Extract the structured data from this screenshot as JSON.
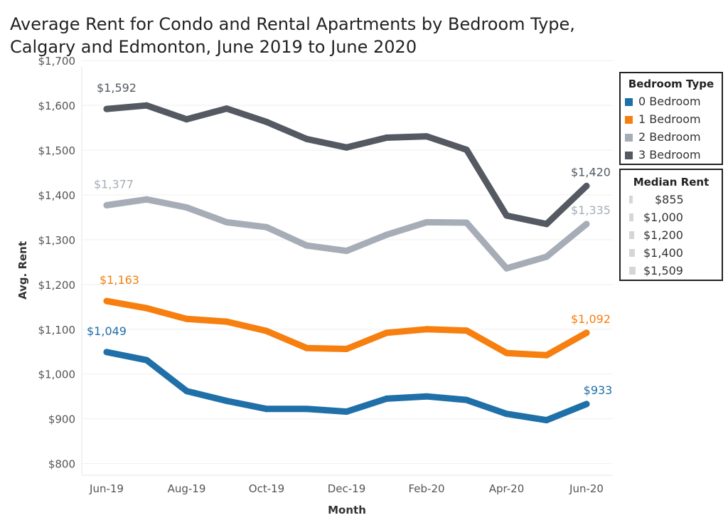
{
  "title_lines": [
    "Average Rent for Condo and Rental Apartments by Bedroom Type,",
    "Calgary and Edmonton, June 2019 to June 2020"
  ],
  "chart_data": {
    "type": "line",
    "title": "Average Rent for Condo and Rental Apartments by Bedroom Type, Calgary and Edmonton, June 2019 to June 2020",
    "xlabel": "Month",
    "ylabel": "Avg. Rent",
    "x": [
      "2019-06",
      "2019-07",
      "2019-08",
      "2019-09",
      "2019-10",
      "2019-11",
      "2019-12",
      "2020-01",
      "2020-02",
      "2020-03",
      "2020-04",
      "2020-05",
      "2020-06"
    ],
    "x_tick_labels": [
      {
        "x": "2019-06",
        "label": "Jun-19"
      },
      {
        "x": "2019-08",
        "label": "Aug-19"
      },
      {
        "x": "2019-10",
        "label": "Oct-19"
      },
      {
        "x": "2019-12",
        "label": "Dec-19"
      },
      {
        "x": "2020-02",
        "label": "Feb-20"
      },
      {
        "x": "2020-04",
        "label": "Apr-20"
      },
      {
        "x": "2020-06",
        "label": "Jun-20"
      }
    ],
    "ylim": [
      780,
      1710
    ],
    "y_ticks": [
      800,
      900,
      1000,
      1100,
      1200,
      1300,
      1400,
      1500,
      1600,
      1700
    ],
    "y_tick_labels": [
      "$800",
      "$900",
      "$1,000",
      "$1,100",
      "$1,200",
      "$1,300",
      "$1,400",
      "$1,500",
      "$1,600",
      "$1,700"
    ],
    "grid": true,
    "legend_position": "right",
    "series": [
      {
        "name": "0 Bedroom",
        "color": "#1f6fa8",
        "values": [
          1049,
          1031,
          962,
          940,
          922,
          922,
          916,
          945,
          950,
          942,
          911,
          897,
          933
        ],
        "start_label": "$1,049",
        "end_label": "$933"
      },
      {
        "name": "1 Bedroom",
        "color": "#f77f0f",
        "values": [
          1163,
          1147,
          1123,
          1117,
          1096,
          1058,
          1056,
          1092,
          1100,
          1097,
          1047,
          1042,
          1092
        ],
        "start_label": "$1,163",
        "end_label": "$1,092"
      },
      {
        "name": "2 Bedroom",
        "color": "#a7adb7",
        "values": [
          1377,
          1390,
          1372,
          1339,
          1328,
          1287,
          1275,
          1311,
          1339,
          1338,
          1236,
          1262,
          1335
        ],
        "start_label": "$1,377",
        "end_label": "$1,335"
      },
      {
        "name": "3 Bedroom",
        "color": "#545962",
        "values": [
          1592,
          1600,
          1569,
          1593,
          1563,
          1525,
          1506,
          1528,
          1531,
          1501,
          1354,
          1335,
          1420
        ],
        "start_label": "$1,592",
        "end_label": "$1,420"
      }
    ]
  },
  "legend": {
    "title": "Bedroom Type",
    "items": [
      {
        "label": "0 Bedroom",
        "color": "#1f6fa8"
      },
      {
        "label": "1 Bedroom",
        "color": "#f77f0f"
      },
      {
        "label": "2 Bedroom",
        "color": "#a7adb7"
      },
      {
        "label": "3 Bedroom",
        "color": "#545962"
      }
    ]
  },
  "size_legend": {
    "title": "Median Rent",
    "items": [
      "$855",
      "$1,000",
      "$1,200",
      "$1,400",
      "$1,509"
    ]
  }
}
